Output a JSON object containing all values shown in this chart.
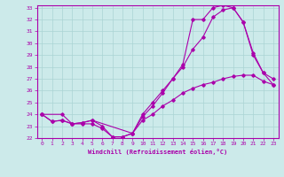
{
  "xlabel": "Windchill (Refroidissement éolien,°C)",
  "background_color": "#cceaea",
  "grid_color": "#aad4d4",
  "line_color": "#aa00aa",
  "xlim": [
    -0.5,
    23.5
  ],
  "ylim": [
    22,
    33.2
  ],
  "xticks": [
    0,
    1,
    2,
    3,
    4,
    5,
    6,
    7,
    8,
    9,
    10,
    11,
    12,
    13,
    14,
    15,
    16,
    17,
    18,
    19,
    20,
    21,
    22,
    23
  ],
  "yticks": [
    22,
    23,
    24,
    25,
    26,
    27,
    28,
    29,
    30,
    31,
    32,
    33
  ],
  "curve1_x": [
    0,
    1,
    2,
    3,
    4,
    5,
    6,
    7,
    8,
    9,
    10,
    11,
    12,
    13,
    14,
    15,
    16,
    17,
    18,
    19,
    20,
    21,
    22,
    23
  ],
  "curve1_y": [
    24.0,
    23.4,
    23.5,
    23.2,
    23.2,
    23.2,
    22.8,
    22.1,
    22.1,
    22.4,
    24.0,
    25.0,
    26.0,
    27.0,
    28.0,
    29.5,
    30.5,
    32.2,
    32.8,
    33.0,
    31.8,
    29.2,
    27.5,
    26.5
  ],
  "curve2_x": [
    0,
    1,
    2,
    3,
    4,
    5,
    6,
    7,
    8,
    9,
    10,
    11,
    12,
    13,
    14,
    15,
    16,
    17,
    18,
    19,
    20,
    21,
    22,
    23
  ],
  "curve2_y": [
    24.0,
    23.4,
    23.5,
    23.2,
    23.3,
    23.5,
    23.0,
    22.1,
    22.1,
    22.4,
    23.5,
    24.0,
    24.7,
    25.2,
    25.8,
    26.2,
    26.5,
    26.7,
    27.0,
    27.2,
    27.3,
    27.3,
    26.8,
    26.5
  ],
  "curve3_x": [
    0,
    2,
    3,
    4,
    5,
    9,
    10,
    11,
    12,
    13,
    14,
    15,
    16,
    17,
    18,
    19,
    20,
    21,
    22,
    23
  ],
  "curve3_y": [
    24.0,
    24.0,
    23.2,
    23.3,
    23.5,
    22.4,
    23.8,
    24.7,
    25.8,
    27.0,
    28.2,
    32.0,
    32.0,
    33.0,
    33.2,
    33.0,
    31.8,
    29.0,
    27.5,
    27.0
  ]
}
